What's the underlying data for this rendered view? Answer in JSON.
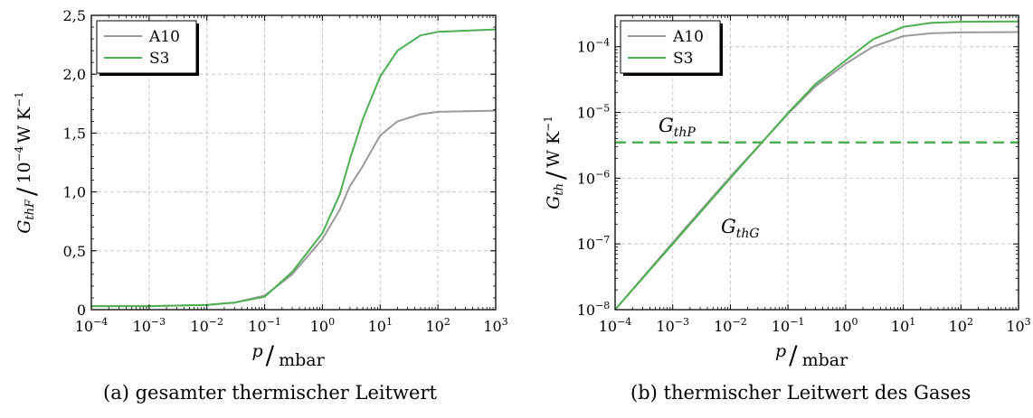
{
  "captions": {
    "a": "(a) gesamter thermischer Leitwert",
    "b": "(b) thermischer Leitwert des Gases"
  },
  "colors": {
    "A10": "#9a9a9a",
    "S3": "#4caf50",
    "grid": "#c8c8c8"
  },
  "chart_data": [
    {
      "type": "line",
      "panel": "a",
      "xscale": "log",
      "yscale": "linear",
      "xlim": [
        0.0001,
        1000
      ],
      "ylim": [
        0,
        2.5
      ],
      "x_ticks": [
        0.0001,
        0.001,
        0.01,
        0.1,
        1,
        10,
        100,
        1000
      ],
      "y_ticks": [
        0,
        0.5,
        1.0,
        1.5,
        2.0,
        2.5
      ],
      "y_tick_labels": [
        "0",
        "0,5",
        "1,0",
        "1,5",
        "2,0",
        "2,5"
      ],
      "xlabel": {
        "var": "p",
        "unit": "mbar"
      },
      "ylabel": {
        "var": "G",
        "sub": "thF",
        "unit": "10",
        "unit_exp": "−4",
        "unit_rest": "W K",
        "unit_rest_exp": "−1"
      },
      "grid": true,
      "legend": "top-left",
      "series": [
        {
          "name": "A10",
          "x": [
            0.0001,
            0.001,
            0.01,
            0.03,
            0.1,
            0.3,
            1,
            2,
            3,
            5,
            10,
            20,
            50,
            100,
            1000
          ],
          "y": [
            0.03,
            0.03,
            0.04,
            0.06,
            0.12,
            0.3,
            0.6,
            0.85,
            1.05,
            1.22,
            1.48,
            1.6,
            1.66,
            1.68,
            1.69
          ]
        },
        {
          "name": "S3",
          "x": [
            0.0001,
            0.001,
            0.01,
            0.03,
            0.1,
            0.3,
            1,
            2,
            3,
            5,
            10,
            20,
            50,
            100,
            1000
          ],
          "y": [
            0.03,
            0.03,
            0.04,
            0.06,
            0.11,
            0.32,
            0.65,
            0.98,
            1.28,
            1.62,
            1.98,
            2.2,
            2.33,
            2.36,
            2.38
          ]
        }
      ]
    },
    {
      "type": "line",
      "panel": "b",
      "xscale": "log",
      "yscale": "log",
      "xlim": [
        0.0001,
        1000
      ],
      "ylim": [
        1e-08,
        0.0003
      ],
      "x_ticks": [
        0.0001,
        0.001,
        0.01,
        0.1,
        1,
        10,
        100,
        1000
      ],
      "y_ticks": [
        1e-08,
        1e-07,
        1e-06,
        1e-05,
        0.0001
      ],
      "xlabel": {
        "var": "p",
        "unit": "mbar"
      },
      "ylabel": {
        "var": "G",
        "sub": "th",
        "unit": "W K",
        "unit_exp": "−1"
      },
      "grid": true,
      "legend": "top-left",
      "hline": {
        "y": 3.5e-06,
        "label": "G",
        "label_sub": "thP",
        "style": "dashed"
      },
      "annotation": {
        "label": "G",
        "label_sub": "thG"
      },
      "series": [
        {
          "name": "A10",
          "x": [
            0.0001,
            0.001,
            0.01,
            0.1,
            0.3,
            1,
            3,
            10,
            30,
            100,
            1000
          ],
          "y": [
            1e-08,
            1.05e-07,
            1.05e-06,
            9.5e-06,
            2.5e-05,
            5.5e-05,
            0.0001,
            0.000145,
            0.00016,
            0.000165,
            0.000167
          ]
        },
        {
          "name": "S3",
          "x": [
            0.0001,
            0.001,
            0.01,
            0.1,
            0.3,
            1,
            3,
            10,
            30,
            100,
            1000
          ],
          "y": [
            1e-08,
            1e-07,
            1e-06,
            9.8e-06,
            2.7e-05,
            6.2e-05,
            0.00013,
            0.0002,
            0.00023,
            0.00024,
            0.000242
          ]
        }
      ]
    }
  ]
}
